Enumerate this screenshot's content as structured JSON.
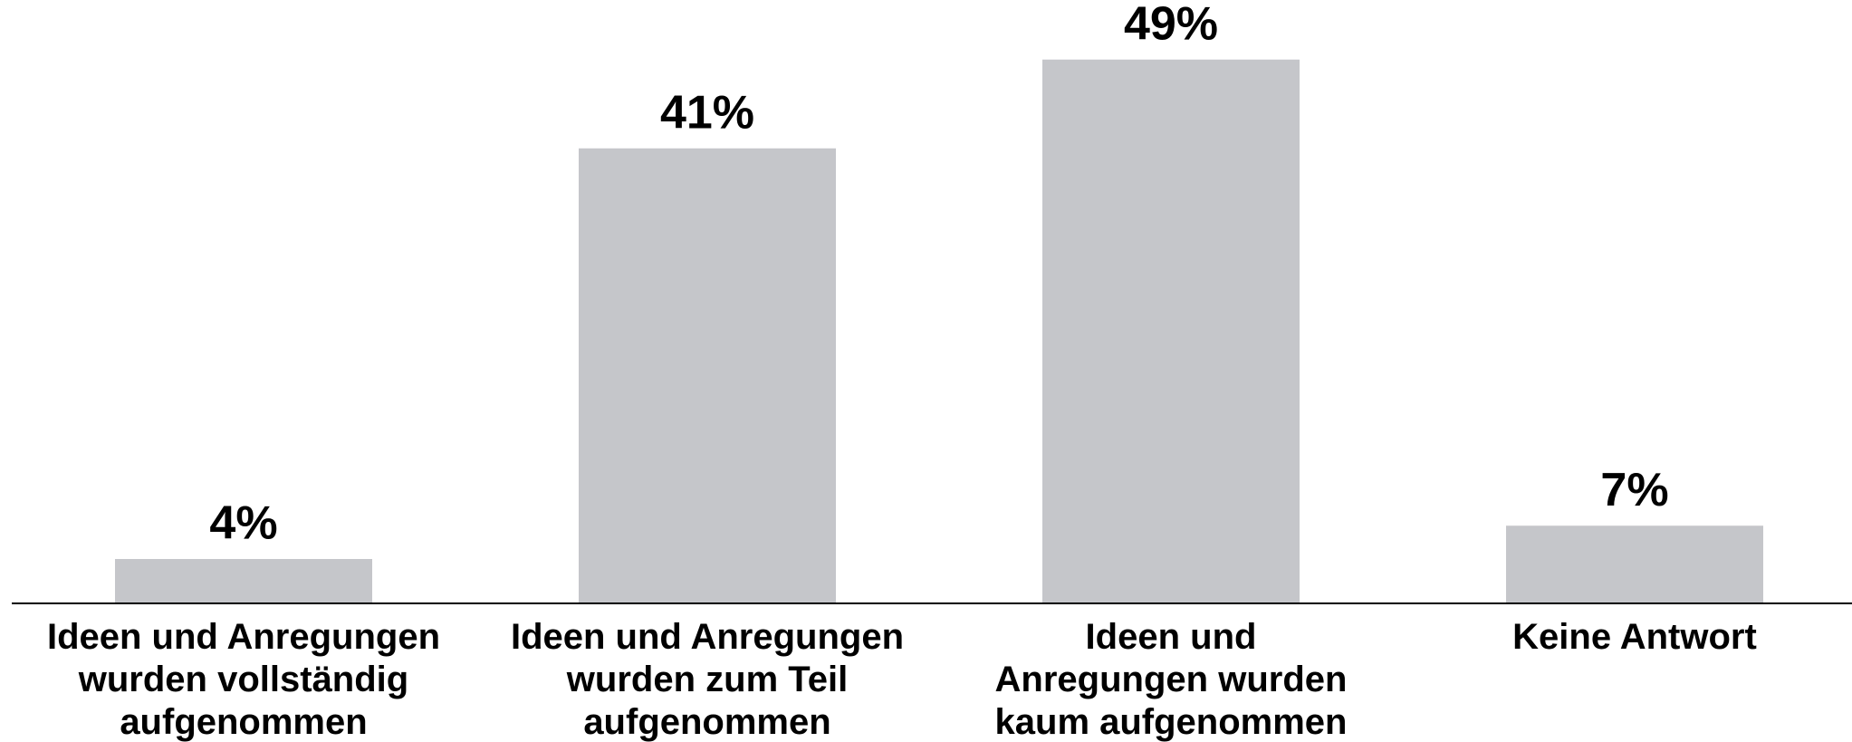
{
  "chart_data": {
    "type": "bar",
    "categories": [
      "Ideen und Anregungen\nwurden vollständig\naufgenommen",
      "Ideen und Anregungen\nwurden zum Teil\naufgenommen",
      "Ideen und\nAnregungen wurden\nkaum aufgenommen",
      "Keine Antwort"
    ],
    "values": [
      4,
      41,
      49,
      7
    ],
    "value_labels": [
      "4%",
      "41%",
      "49%",
      "7%"
    ],
    "color": "#c5c6ca"
  }
}
